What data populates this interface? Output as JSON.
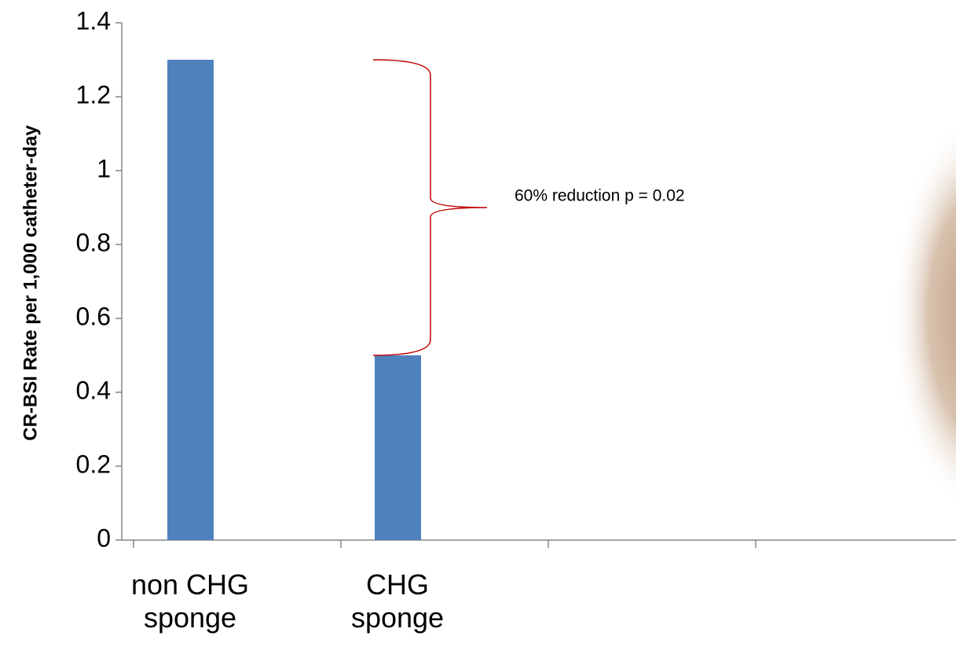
{
  "chart_data": {
    "type": "bar",
    "categories": [
      "non CHG sponge",
      "CHG sponge",
      null,
      null
    ],
    "values": [
      1.3,
      0.5,
      null,
      null
    ],
    "color": "#4f81bd",
    "ylabel": "CR-BSI Rate per 1,000 catheter-day",
    "annotation": "60% reduction p = 0.02",
    "annotation_color": "#c00000",
    "ylim": [
      0,
      1.4
    ],
    "yticks": [
      0,
      0.2,
      0.4,
      0.6,
      0.8,
      1,
      1.2,
      1.4
    ],
    "grid": false
  }
}
